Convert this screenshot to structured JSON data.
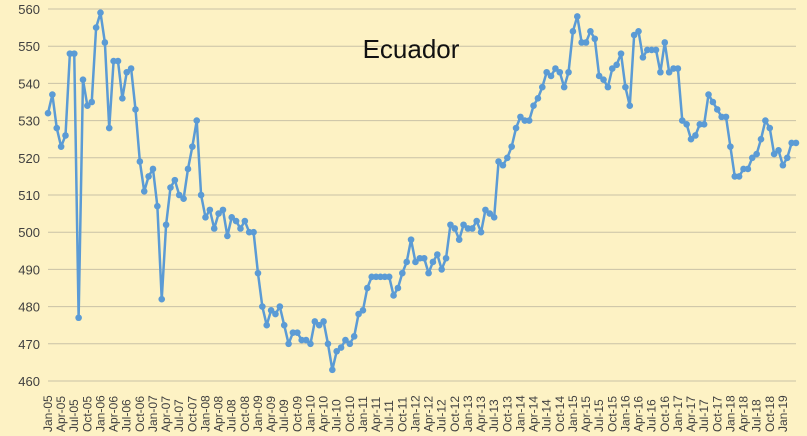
{
  "chart_data": {
    "type": "line",
    "title": "Ecuador",
    "xlabel": "",
    "ylabel": "",
    "ylim": [
      460,
      560
    ],
    "yticks": [
      460,
      470,
      480,
      490,
      500,
      510,
      520,
      530,
      540,
      550,
      560
    ],
    "grid": true,
    "legend": "none",
    "x_start": "Jan-05",
    "xtick_labels": [
      "Jan-05",
      "Apr-05",
      "Jul-05",
      "Oct-05",
      "Jan-06",
      "Apr-06",
      "Jul-06",
      "Oct-06",
      "Jan-07",
      "Apr-07",
      "Jul-07",
      "Oct-07",
      "Jan-08",
      "Apr-08",
      "Jul-08",
      "Oct-08",
      "Jan-09",
      "Apr-09",
      "Jul-09",
      "Oct-09",
      "Jan-10",
      "Apr-10",
      "Jul-10",
      "Oct-10",
      "Jan-11",
      "Apr-11",
      "Jul-11",
      "Oct-11",
      "Jan-12",
      "Apr-12",
      "Jul-12",
      "Oct-12",
      "Jan-13",
      "Apr-13",
      "Jul-13",
      "Oct-13",
      "Jan-14",
      "Apr-14",
      "Jul-14",
      "Oct-14",
      "Jan-15",
      "Apr-15",
      "Jul-15",
      "Oct-15",
      "Jan-16",
      "Apr-16",
      "Jul-16",
      "Oct-16",
      "Jan-17",
      "Apr-17",
      "Jul-17",
      "Oct-17",
      "Jan-18",
      "Apr-18",
      "Jul-18",
      "Oct-18",
      "Jan-19"
    ],
    "series_color": "#5b9bd5",
    "series": [
      {
        "values": [
          532,
          537,
          528,
          523,
          526,
          548,
          548,
          477,
          541,
          534,
          535,
          555,
          559,
          551,
          528,
          546,
          546,
          536,
          543,
          544,
          533,
          519,
          511,
          515,
          517,
          507,
          482,
          502,
          512,
          514,
          510,
          509,
          517,
          523,
          530,
          510,
          504,
          506,
          501,
          505,
          506,
          499,
          504,
          503,
          501,
          503,
          500,
          500,
          489,
          480,
          475,
          479,
          478,
          480,
          475,
          470,
          473,
          473,
          471,
          471,
          470,
          476,
          475,
          476,
          470,
          463,
          468,
          469,
          471,
          470,
          472,
          478,
          479,
          485,
          488,
          488,
          488,
          488,
          488,
          483,
          485,
          489,
          492,
          498,
          492,
          493,
          493,
          489,
          492,
          494,
          490,
          493,
          502,
          501,
          498,
          502,
          501,
          501,
          503,
          500,
          506,
          505,
          504,
          519,
          518,
          520,
          523,
          528,
          531,
          530,
          530,
          534,
          536,
          539,
          543,
          542,
          544,
          543,
          539,
          543,
          554,
          558,
          551,
          551,
          554,
          552,
          542,
          541,
          539,
          544,
          545,
          548,
          539,
          534,
          553,
          554,
          547,
          549,
          549,
          549,
          543,
          551,
          543,
          544,
          544,
          530,
          529,
          525,
          526,
          529,
          529,
          537,
          535,
          533,
          531,
          531,
          523,
          515,
          515,
          517,
          517,
          520,
          521,
          525,
          530,
          528,
          521,
          522,
          518,
          520,
          524,
          524
        ]
      }
    ]
  }
}
